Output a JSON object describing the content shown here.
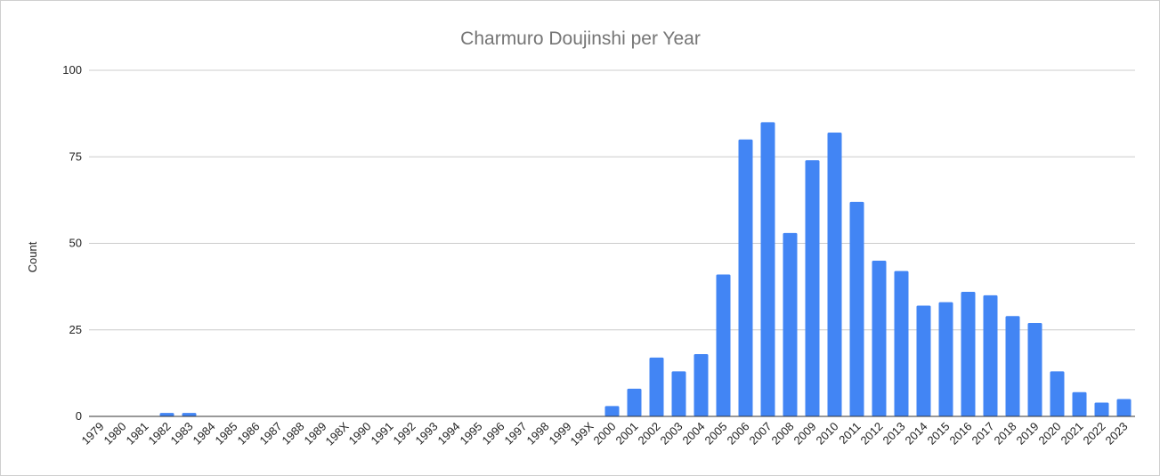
{
  "chart_data": {
    "type": "bar",
    "title": "Charmuro Doujinshi per Year",
    "xlabel": "",
    "ylabel": "Count",
    "ylim": [
      0,
      100
    ],
    "yticks": [
      0,
      25,
      50,
      75,
      100
    ],
    "grid": true,
    "legend": "none",
    "bar_color": "#4285f4",
    "categories": [
      "1979",
      "1980",
      "1981",
      "1982",
      "1983",
      "1984",
      "1985",
      "1986",
      "1987",
      "1988",
      "1989",
      "198X",
      "1990",
      "1991",
      "1992",
      "1993",
      "1994",
      "1995",
      "1996",
      "1997",
      "1998",
      "1999",
      "199X",
      "2000",
      "2001",
      "2002",
      "2003",
      "2004",
      "2005",
      "2006",
      "2007",
      "2008",
      "2009",
      "2010",
      "2011",
      "2012",
      "2013",
      "2014",
      "2015",
      "2016",
      "2017",
      "2018",
      "2019",
      "2020",
      "2021",
      "2022",
      "2023"
    ],
    "values": [
      0,
      0,
      0,
      1,
      1,
      0,
      0,
      0,
      0,
      0,
      0,
      0,
      0,
      0,
      0,
      0,
      0,
      0,
      0,
      0,
      0,
      0,
      0,
      3,
      8,
      17,
      13,
      18,
      41,
      80,
      85,
      53,
      74,
      82,
      62,
      45,
      42,
      32,
      33,
      36,
      35,
      29,
      27,
      13,
      7,
      4,
      5
    ]
  }
}
